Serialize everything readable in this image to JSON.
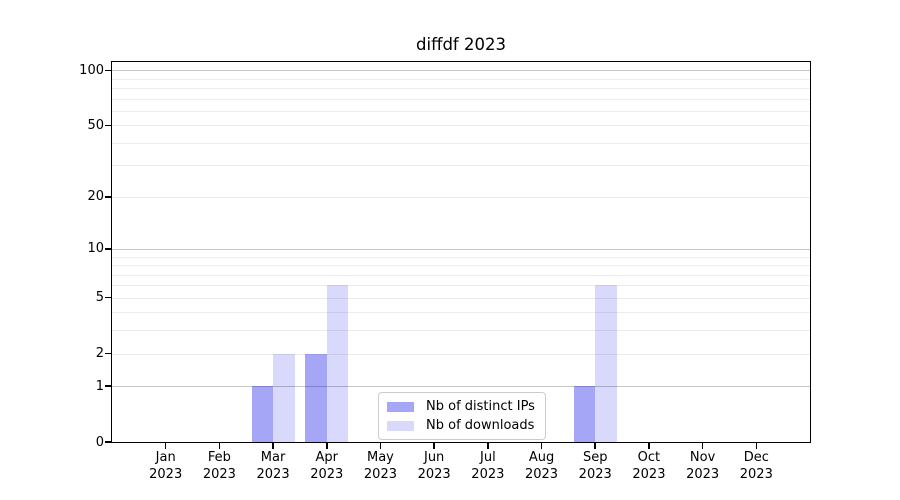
{
  "chart_data": {
    "type": "bar",
    "title": "diffdf 2023",
    "months": [
      "Jan",
      "Feb",
      "Mar",
      "Apr",
      "May",
      "Jun",
      "Jul",
      "Aug",
      "Sep",
      "Oct",
      "Nov",
      "Dec"
    ],
    "year": "2023",
    "series": [
      {
        "name": "Nb of distinct IPs",
        "hex_on_white": "#a6a6f6",
        "base_color": "#0000e6",
        "alpha": 0.35,
        "values": [
          0,
          0,
          1,
          2,
          0,
          0,
          0,
          0,
          1,
          0,
          0,
          0
        ]
      },
      {
        "name": "Nb of downloads",
        "hex_on_white": "#d9d9fa",
        "base_color": "#0000e6",
        "alpha": 0.15,
        "values": [
          0,
          0,
          2,
          6,
          0,
          0,
          0,
          0,
          6,
          0,
          0,
          0
        ]
      }
    ],
    "yscale": "log1p",
    "ylim": [
      0,
      111
    ],
    "yticks": [
      100,
      50,
      20,
      10,
      5,
      2,
      1,
      0
    ],
    "grid": {
      "major_lines": [
        1,
        10,
        100
      ],
      "minor_lines": [
        2,
        3,
        4,
        5,
        6,
        7,
        8,
        9,
        20,
        30,
        40,
        50,
        60,
        70,
        80,
        90
      ],
      "major_color": "#c6c6c6",
      "minor_color": "#ececec"
    },
    "legend": {
      "position": "inside-bottom-center",
      "border_color": "#cccccc",
      "background": "#ffffff"
    },
    "axis_color": "#000000",
    "text_color": "#000000",
    "background": "#ffffff"
  }
}
